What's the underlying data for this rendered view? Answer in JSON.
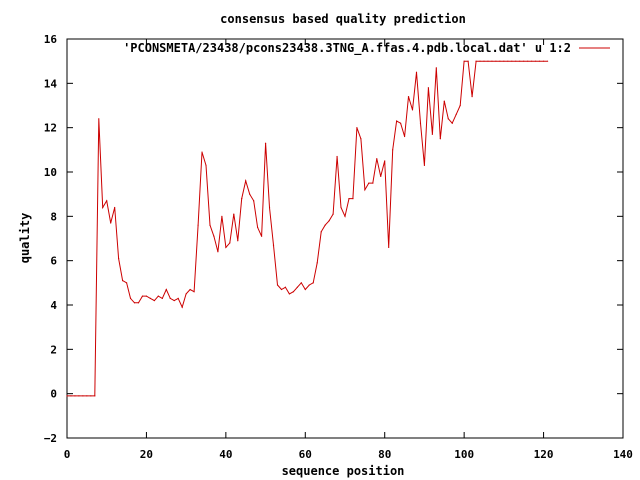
{
  "chart_data": {
    "type": "line",
    "title": "consensus based quality prediction",
    "xlabel": "sequence position",
    "ylabel": "quality",
    "xlim": [
      0,
      140
    ],
    "ylim": [
      -2,
      16
    ],
    "xticks": [
      0,
      20,
      40,
      60,
      80,
      100,
      120,
      140
    ],
    "yticks": [
      -2,
      0,
      2,
      4,
      6,
      8,
      10,
      12,
      14,
      16
    ],
    "grid": false,
    "legend_position": "top-right",
    "series": [
      {
        "name": "'PCONSMETA/23438/pcons23438.3TNG_A.ffas.4.pdb.local.dat' u 1:2",
        "color": "#cc0000",
        "x": [
          0,
          1,
          2,
          3,
          4,
          5,
          6,
          7,
          8,
          9,
          10,
          11,
          12,
          13,
          14,
          15,
          16,
          17,
          18,
          19,
          20,
          21,
          22,
          23,
          24,
          25,
          26,
          27,
          28,
          29,
          30,
          31,
          32,
          33,
          34,
          35,
          36,
          37,
          38,
          39,
          40,
          41,
          42,
          43,
          44,
          45,
          46,
          47,
          48,
          49,
          50,
          51,
          52,
          53,
          54,
          55,
          56,
          57,
          58,
          59,
          60,
          61,
          62,
          63,
          64,
          65,
          66,
          67,
          68,
          69,
          70,
          71,
          72,
          73,
          74,
          75,
          76,
          77,
          78,
          79,
          80,
          81,
          82,
          83,
          84,
          85,
          86,
          87,
          88,
          89,
          90,
          91,
          92,
          93,
          94,
          95,
          96,
          97,
          98,
          99,
          100,
          101,
          102,
          103,
          104,
          105,
          106,
          107,
          108,
          109,
          110,
          111,
          112,
          113,
          114,
          115,
          116,
          117,
          118,
          119,
          120,
          121
        ],
        "y": [
          -0.1,
          -0.1,
          -0.1,
          -0.1,
          -0.1,
          -0.1,
          -0.1,
          -0.1,
          12.4,
          8.4,
          8.7,
          7.7,
          8.4,
          6.1,
          5.1,
          5.0,
          4.3,
          4.1,
          4.1,
          4.4,
          4.4,
          4.3,
          4.2,
          4.4,
          4.3,
          4.7,
          4.3,
          4.2,
          4.3,
          3.9,
          4.5,
          4.7,
          4.6,
          7.6,
          10.9,
          10.3,
          7.6,
          7.1,
          6.4,
          8.0,
          6.6,
          6.8,
          8.1,
          6.9,
          8.8,
          9.6,
          9.0,
          8.7,
          7.5,
          7.1,
          11.3,
          8.4,
          6.7,
          4.9,
          4.7,
          4.8,
          4.5,
          4.6,
          4.8,
          5.0,
          4.7,
          4.9,
          5.0,
          5.9,
          7.3,
          7.6,
          7.8,
          8.1,
          10.7,
          8.4,
          8.0,
          8.8,
          8.8,
          12.0,
          11.5,
          9.2,
          9.5,
          9.5,
          10.6,
          9.8,
          10.5,
          6.6,
          11.0,
          12.3,
          12.2,
          11.6,
          13.4,
          12.8,
          14.5,
          12.2,
          10.3,
          13.8,
          11.7,
          14.7,
          11.5,
          13.2,
          12.4,
          12.2,
          12.6,
          13.0,
          15.0,
          15.0,
          13.4,
          15.0,
          15.0,
          15.0,
          15.0,
          15.0,
          15.0,
          15.0,
          15.0,
          15.0,
          15.0,
          15.0,
          15.0,
          15.0,
          15.0,
          15.0,
          15.0,
          15.0,
          15.0,
          15.0
        ]
      }
    ]
  }
}
